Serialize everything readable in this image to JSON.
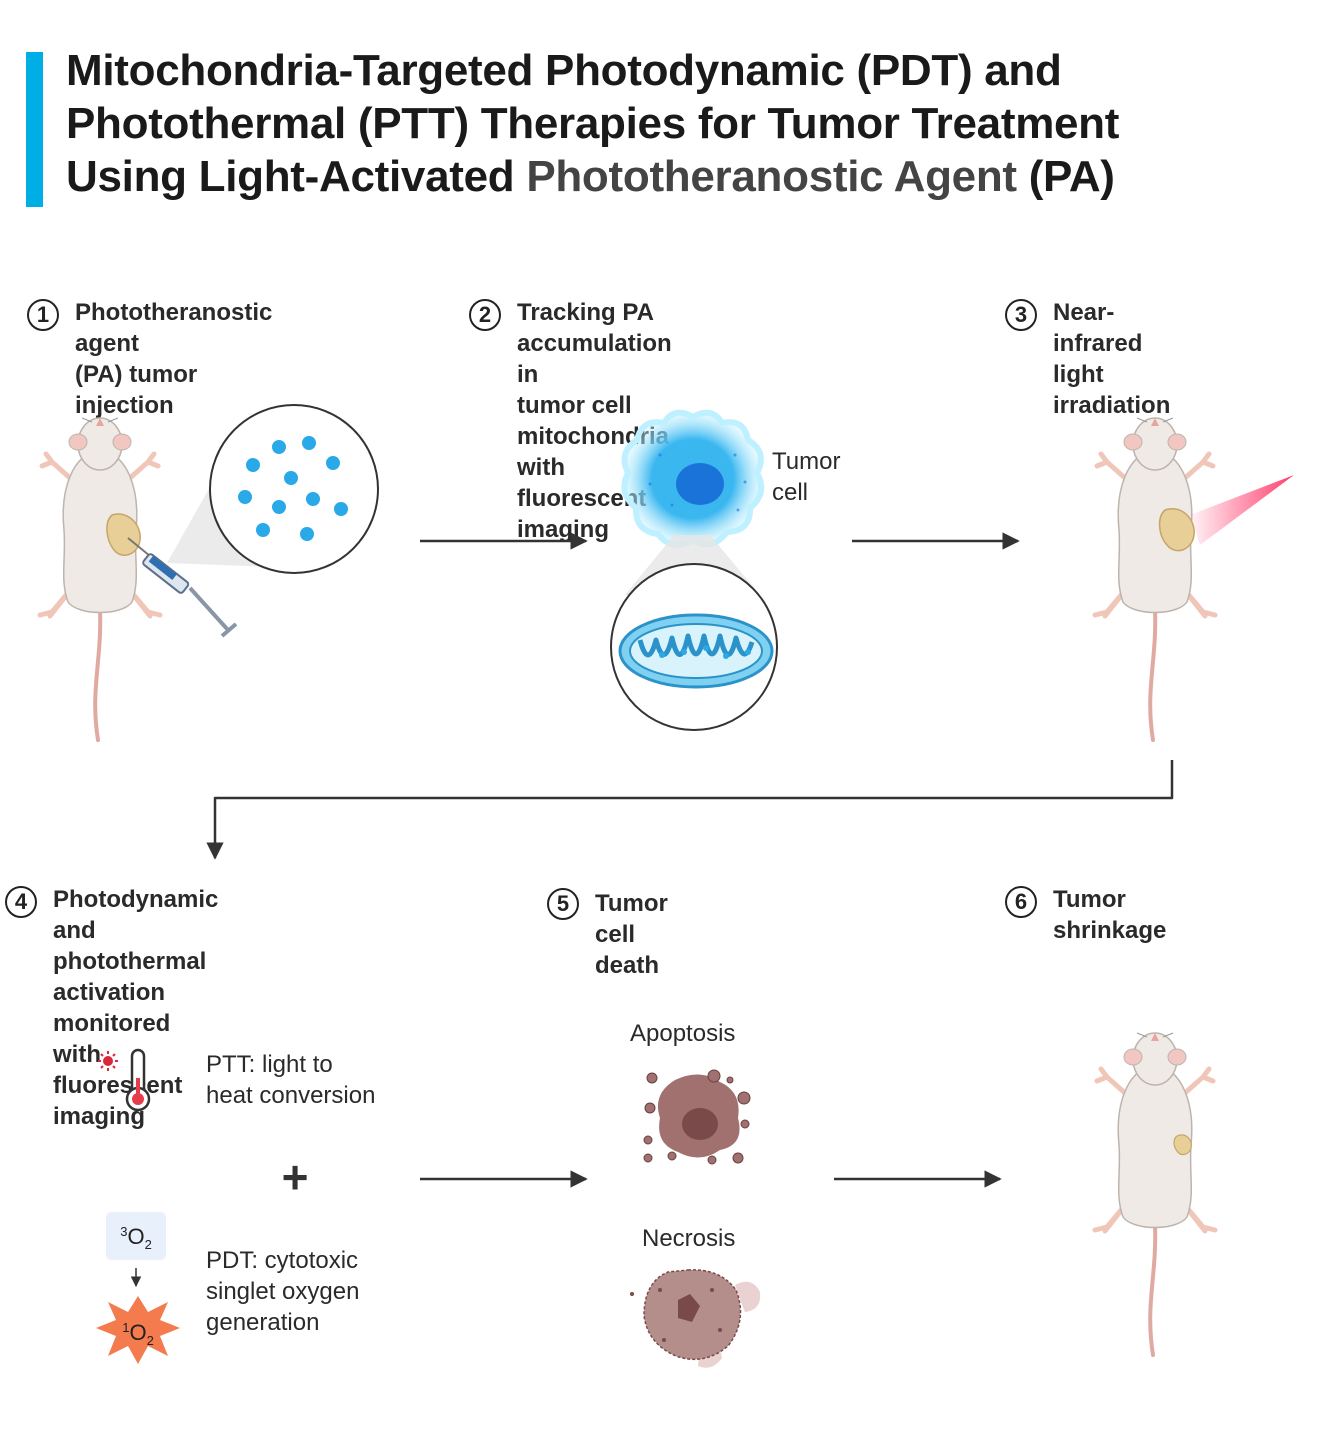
{
  "title": {
    "line1": "Mitochondria-Targeted Photodynamic (PDT) and",
    "line2": "Photothermal (PTT) Therapies for Tumor Treatment",
    "line3_a": "Using Light-Activated ",
    "line3_b": "Phototheranostic Agent",
    "line3_c": " (PA)"
  },
  "steps": [
    {
      "num": "1",
      "line1": "Phototheranostic agent",
      "line2": "(PA) tumor injection"
    },
    {
      "num": "2",
      "line1": "Tracking PA accumulation in",
      "line2": "tumor cell mitochondria with",
      "line3": "fluorescent imaging"
    },
    {
      "num": "3",
      "line1": "Near-infrared light",
      "line2": "irradiation"
    },
    {
      "num": "4",
      "line1": "Photodynamic and photothermal",
      "line2": "activation monitored with",
      "line3": "fluorescent imaging"
    },
    {
      "num": "5",
      "line1": "Tumor cell death"
    },
    {
      "num": "6",
      "line1": "Tumor shrinkage"
    }
  ],
  "labels": {
    "tumor_cell_1": "Tumor",
    "tumor_cell_2": "cell",
    "ptt_1": "PTT: light to",
    "ptt_2": "heat conversion",
    "pdt_1": "PDT: cytotoxic",
    "pdt_2": "singlet oxygen",
    "pdt_3": "generation",
    "plus": "+",
    "triplet_sup": "3",
    "triplet_base": "O",
    "triplet_sub": "2",
    "singlet_sup": "1",
    "singlet_base": "O",
    "singlet_sub": "2",
    "apoptosis": "Apoptosis",
    "necrosis": "Necrosis"
  },
  "colors": {
    "accent_bar": "#00aee6",
    "pa_dot": "#29a9e8",
    "tumor": "#e8cf98",
    "mouse_body": "#efeae6",
    "tail": "#e0aaa3",
    "laser": "#ff3e6e",
    "dead_cell": "#a0716f",
    "singlet_burst": "#f37b4d",
    "arrow": "#333333"
  },
  "icons": [
    "syringe-icon",
    "thermometer-icon",
    "sun-icon",
    "mitochondrion-icon",
    "mouse-icon",
    "tumor-cell-icon"
  ]
}
